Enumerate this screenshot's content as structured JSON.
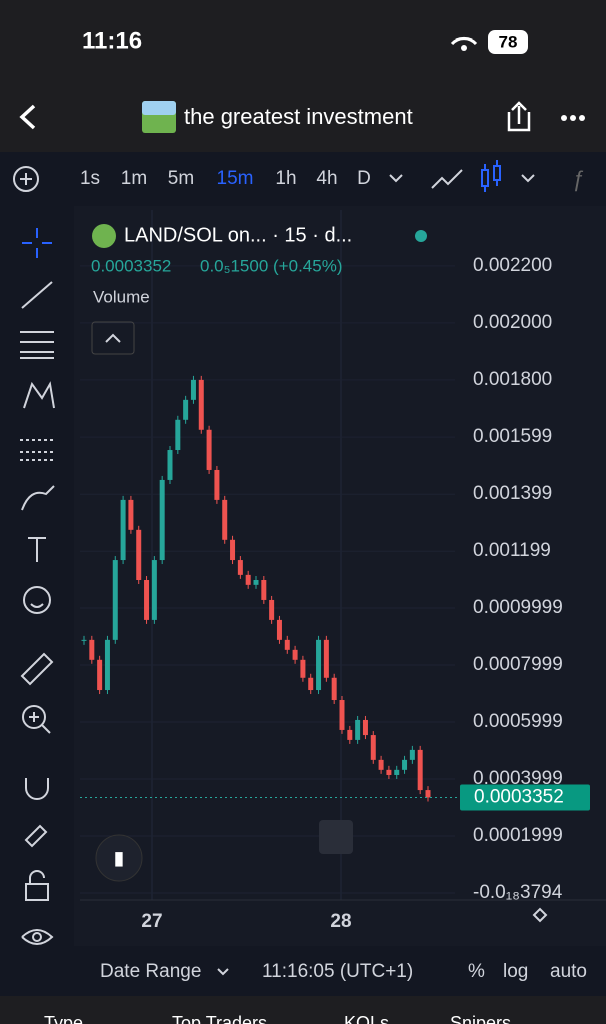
{
  "status": {
    "time": "11:16",
    "battery": "78"
  },
  "header": {
    "title": "the greatest investment"
  },
  "toolbar": {
    "intervals": [
      "1s",
      "1m",
      "5m",
      "15m",
      "1h",
      "4h",
      "D"
    ],
    "active": 3
  },
  "legend": {
    "symbol": "LAND/SOL on... · 15 · d...",
    "price": "0.0003352",
    "change": "0.0₅1500 (+0.45%)",
    "volume": "Volume"
  },
  "chart_data": {
    "type": "candlestick",
    "closes": [
      0.000888,
      0.000818,
      0.000712,
      0.000888,
      0.001168,
      0.001379,
      0.001274,
      0.001098,
      0.000958,
      0.001168,
      0.001449,
      0.001554,
      0.00166,
      0.00173,
      0.0018,
      0.001625,
      0.001484,
      0.001379,
      0.001239,
      0.001168,
      0.001116,
      0.001081,
      0.001098,
      0.001028,
      0.000958,
      0.000888,
      0.000853,
      0.000818,
      0.000755,
      0.000712,
      0.000888,
      0.000755,
      0.000677,
      0.000572,
      0.000537,
      0.000607,
      0.000554,
      0.000467,
      0.000432,
      0.000414,
      0.000432,
      0.000467,
      0.000502,
      0.000361,
      0.0003352
    ],
    "up_color": "#26a69a",
    "down_color": "#ef5350",
    "ylim": [
      -2.46e-05,
      0.002396
    ],
    "yticks": [
      {
        "value": 0.0022,
        "label": "0.002200"
      },
      {
        "value": 0.002,
        "label": "0.002000"
      },
      {
        "value": 0.0018,
        "label": "0.001800"
      },
      {
        "value": 0.001599,
        "label": "0.001599"
      },
      {
        "value": 0.001399,
        "label": "0.001399"
      },
      {
        "value": 0.001199,
        "label": "0.001199"
      },
      {
        "value": 0.0009999,
        "label": "0.0009999"
      },
      {
        "value": 0.0007999,
        "label": "0.0007999"
      },
      {
        "value": 0.0005999,
        "label": "0.0005999"
      },
      {
        "value": 0.0003999,
        "label": "0.0003999"
      },
      {
        "value": 0.0001999,
        "label": "0.0001999"
      },
      {
        "value": -3.794e-19,
        "label": "-0.0₁₈3794"
      }
    ],
    "last_price": {
      "value": 0.0003352,
      "label": "0.0003352"
    },
    "xlabels": [
      "27",
      "28"
    ]
  },
  "bottom": {
    "date_range": "Date Range",
    "time": "11:16:05 (UTC+1)",
    "percent": "%",
    "log": "log",
    "auto": "auto"
  },
  "tabs": [
    "Type",
    "Top Traders",
    "KOLs",
    "Snipers"
  ]
}
